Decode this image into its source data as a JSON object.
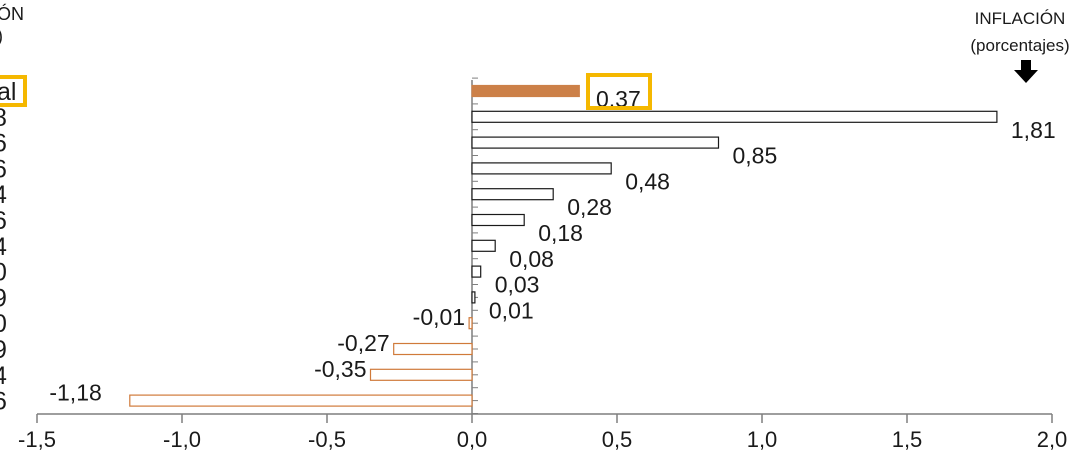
{
  "header": {
    "left_top": "ÓN",
    "left_second": ")",
    "right_title": "INFLACIÓN",
    "right_subtitle": "(porcentajes)"
  },
  "left_partial_labels": [
    "al",
    "8",
    "6",
    "6",
    "4",
    "6",
    "4",
    "0",
    "9",
    "0",
    "9",
    "4",
    "6"
  ],
  "colors": {
    "highlight_box": "#f5b800",
    "total_bar": "#cc8048",
    "positive_bar_stroke": "#1a1a1a",
    "negative_bar_stroke": "#d07a3a",
    "axis": "#7f7f7f"
  },
  "chart_data": {
    "type": "bar",
    "orientation": "horizontal",
    "categories": [
      "al",
      "8",
      "6",
      "6",
      "4",
      "6",
      "4",
      "0",
      "9",
      "0",
      "9",
      "4",
      "6"
    ],
    "values": [
      0.37,
      1.81,
      0.85,
      0.48,
      0.28,
      0.18,
      0.08,
      0.03,
      0.01,
      -0.01,
      -0.27,
      -0.35,
      -1.18
    ],
    "value_labels": [
      "0,37",
      "1,81",
      "0,85",
      "0,48",
      "0,28",
      "0,18",
      "0,08",
      "0,03",
      "0,01",
      "-0,01",
      "-0,27",
      "-0,35",
      "-1,18"
    ],
    "highlighted_index": 0,
    "xlim": [
      -1.5,
      2.0
    ],
    "xticks": [
      -1.5,
      -1.0,
      -0.5,
      0.0,
      0.5,
      1.0,
      1.5,
      2.0
    ],
    "xtick_labels": [
      "-1,5",
      "-1,0",
      "-0,5",
      "0,0",
      "0,5",
      "1,0",
      "1,5",
      "2,0"
    ],
    "grid": false,
    "legend": "none"
  }
}
